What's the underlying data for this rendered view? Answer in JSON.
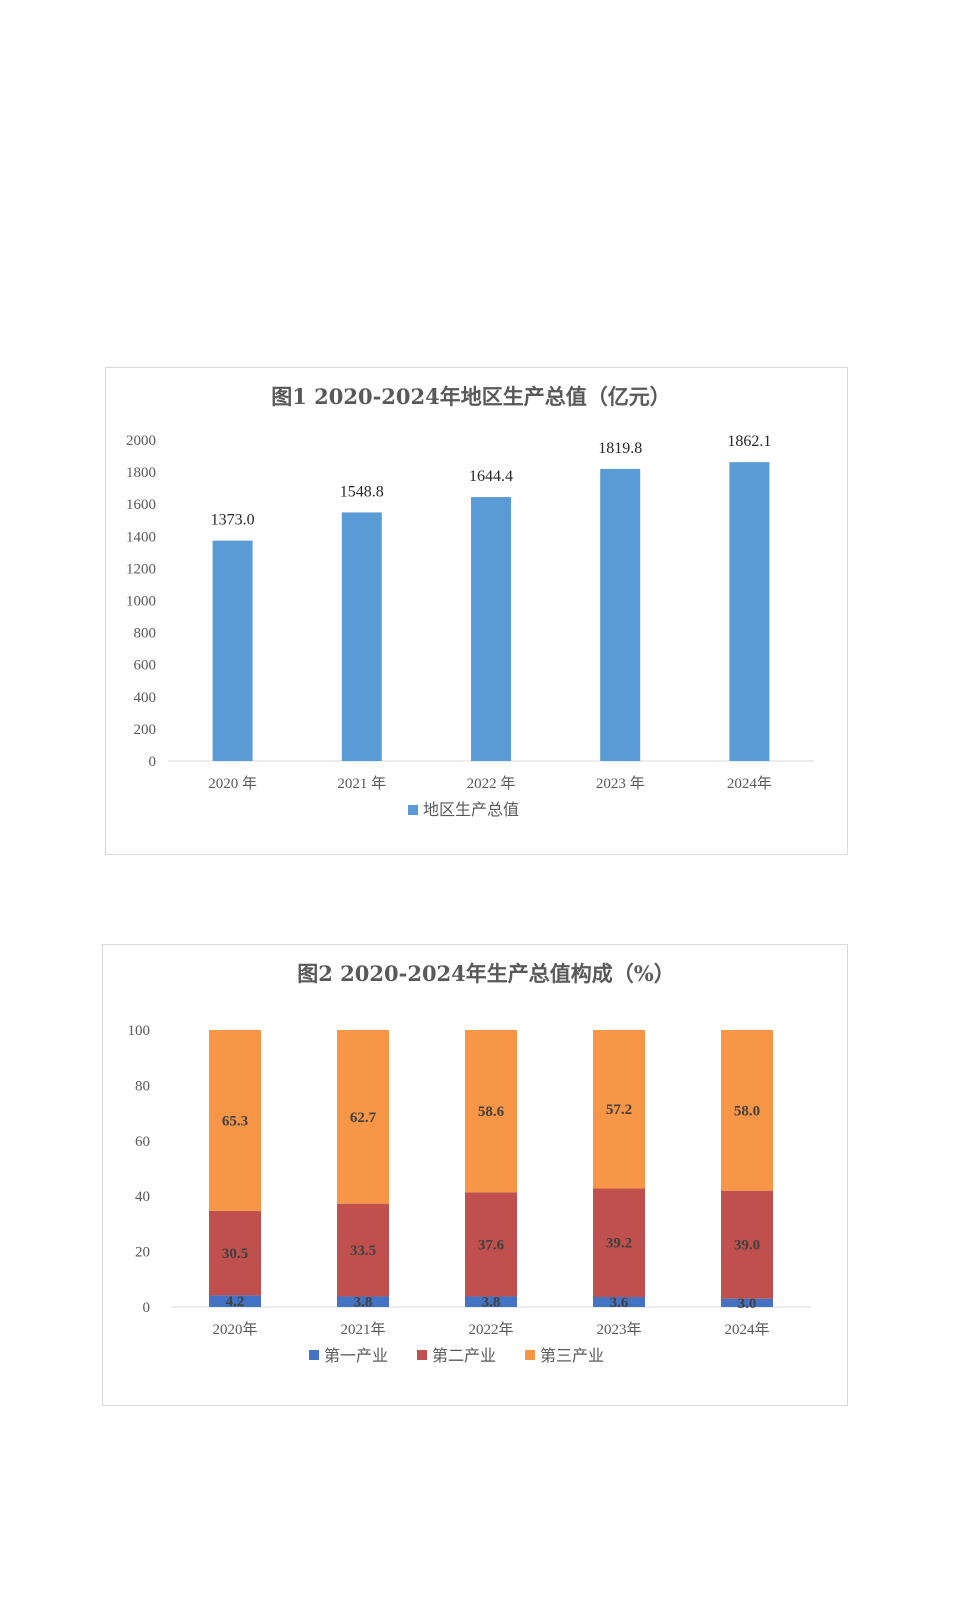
{
  "colors": {
    "bar_blue": "#5b9bd5",
    "primary": "#4472c4",
    "secondary": "#c0504d",
    "tertiary": "#f79646",
    "axis": "#d9d9d9"
  },
  "chart_data": [
    {
      "type": "bar",
      "title": "图1  2020-2024年地区生产总值（亿元）",
      "categories": [
        "2020 年",
        "2021 年",
        "2022 年",
        "2023 年",
        "2024年"
      ],
      "series": [
        {
          "name": "地区生产总值",
          "values": [
            1373.0,
            1548.8,
            1644.4,
            1819.8,
            1862.1
          ]
        }
      ],
      "data_labels": [
        "1373.0",
        "1548.8",
        "1644.4",
        "1819.8",
        "1862.1"
      ],
      "ylim": [
        0,
        2000
      ],
      "yticks": [
        0,
        200,
        400,
        600,
        800,
        1000,
        1200,
        1400,
        1600,
        1800,
        2000
      ],
      "xlabel": "",
      "ylabel": "",
      "grid": false,
      "legend": "bottom"
    },
    {
      "type": "bar",
      "stacked": true,
      "title": "图2 2020-2024年生产总值构成（%）",
      "categories": [
        "2020年",
        "2021年",
        "2022年",
        "2023年",
        "2024年"
      ],
      "series": [
        {
          "name": "第一产业",
          "values": [
            4.2,
            3.8,
            3.8,
            3.6,
            3.0
          ],
          "labels": [
            "4.2",
            "3.8",
            "3.8",
            "3.6",
            "3.0"
          ]
        },
        {
          "name": "第二产业",
          "values": [
            30.5,
            33.5,
            37.6,
            39.2,
            39.0
          ],
          "labels": [
            "30.5",
            "33.5",
            "37.6",
            "39.2",
            "39.0"
          ]
        },
        {
          "name": "第三产业",
          "values": [
            65.3,
            62.7,
            58.6,
            57.2,
            58.0
          ],
          "labels": [
            "65.3",
            "62.7",
            "58.6",
            "57.2",
            "58.0"
          ]
        }
      ],
      "ylim": [
        0,
        100
      ],
      "yticks": [
        0,
        20,
        40,
        60,
        80,
        100
      ],
      "xlabel": "",
      "ylabel": "",
      "grid": false,
      "legend": "bottom"
    }
  ]
}
